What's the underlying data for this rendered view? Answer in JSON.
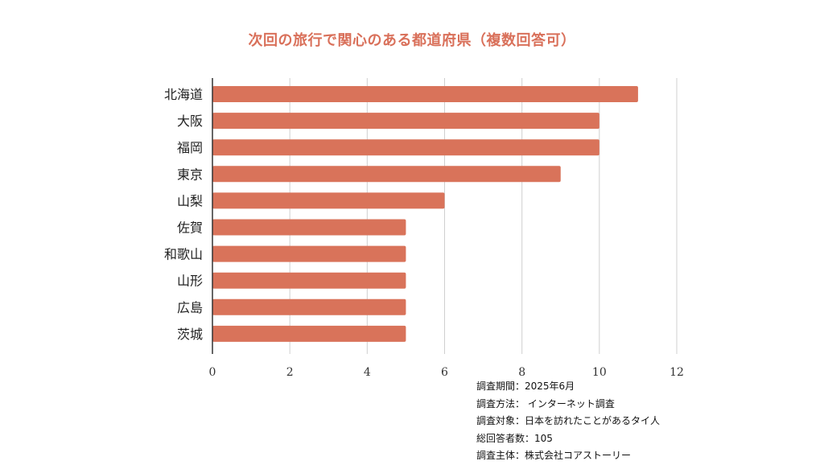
{
  "title": "次回の旅行で関心のある都道府県（複数回答可）",
  "colors": {
    "bar": "#d9735a",
    "title": "#d9705a"
  },
  "chart_data": {
    "type": "bar",
    "orientation": "horizontal",
    "title": "次回の旅行で関心のある都道府県（複数回答可）",
    "xlabel": "",
    "ylabel": "",
    "categories": [
      "北海道",
      "大阪",
      "福岡",
      "東京",
      "山梨",
      "佐賀",
      "和歌山",
      "山形",
      "広島",
      "茨城"
    ],
    "values": [
      11,
      10,
      10,
      9,
      6,
      5,
      5,
      5,
      5,
      5
    ],
    "xlim": [
      0,
      12
    ],
    "x_ticks": [
      0,
      2,
      4,
      6,
      8,
      10,
      12
    ],
    "grid": "vertical",
    "legend": "none"
  },
  "notes": [
    "調査期間：2025年6月",
    "調査方法：  インターネット調査",
    "調査対象：日本を訪れたことがあるタイ人",
    "総回答者数：105",
    "調査主体：株式会社コアストーリー"
  ]
}
